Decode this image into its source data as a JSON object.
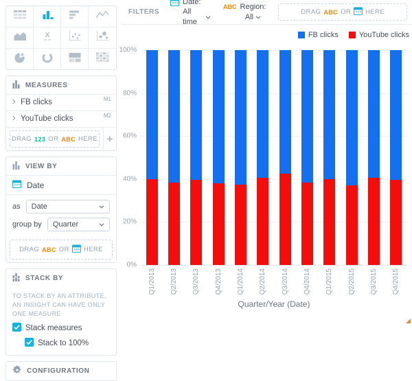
{
  "colors": {
    "accent": "#14b2e2",
    "numeric_token": "#00c18d",
    "attribute_token": "#f18600",
    "icon_gray": "#b3bfca",
    "header_icon": "#8a98a6",
    "fb_blue": "#1570EF",
    "youtube_red": "#F40D0D"
  },
  "sidebar": {
    "viz_types": [
      {
        "name": "table",
        "selected": false
      },
      {
        "name": "column-chart",
        "selected": true
      },
      {
        "name": "bar-chart",
        "selected": false
      },
      {
        "name": "line-chart",
        "selected": false
      },
      {
        "name": "area-chart",
        "selected": false
      },
      {
        "name": "headline",
        "selected": false
      },
      {
        "name": "scatter-plot",
        "selected": false
      },
      {
        "name": "bubble-chart",
        "selected": false
      },
      {
        "name": "pie-chart",
        "selected": false
      },
      {
        "name": "donut-chart",
        "selected": false
      },
      {
        "name": "treemap",
        "selected": false
      },
      {
        "name": "heatmap",
        "selected": false
      }
    ],
    "measures": {
      "title": "MEASURES",
      "items": [
        {
          "label": "FB clicks",
          "badge": "M1"
        },
        {
          "label": "YouTube clicks",
          "badge": "M2"
        }
      ],
      "dropzone": {
        "drag": "DRAG",
        "num_token": "123",
        "or": "OR",
        "attr_token": "ABC",
        "here": "HERE"
      },
      "add_button": "+"
    },
    "view_by": {
      "title": "VIEW BY",
      "attribute": "Date",
      "as_label": "as",
      "as_value": "Date",
      "group_by_label": "group by",
      "group_by_value": "Quarter",
      "dropzone": {
        "drag": "DRAG",
        "attr_token": "ABC",
        "or": "OR",
        "here": "HERE"
      }
    },
    "stack_by": {
      "title": "STACK BY",
      "hint": "TO STACK BY AN ATTRIBUTE, AN INSIGHT CAN HAVE ONLY ONE MEASURE",
      "checkboxes": [
        {
          "label": "Stack measures",
          "checked": true,
          "indent": false
        },
        {
          "label": "Stack to 100%",
          "checked": true,
          "indent": true
        }
      ]
    },
    "configuration": {
      "title": "CONFIGURATION"
    }
  },
  "filters": {
    "label": "FILTERS",
    "date_filter": {
      "name": "Date:",
      "value": "All time"
    },
    "region_filter": {
      "token": "ABC",
      "name": "Region:",
      "value": "All"
    },
    "dropzone": {
      "drag": "DRAG",
      "attr_token": "ABC",
      "or": "OR",
      "here": "HERE"
    }
  },
  "chart_data": {
    "type": "bar",
    "stacked": true,
    "stack_to_100_percent": true,
    "categories": [
      "Q1/2013",
      "Q2/2013",
      "Q3/2013",
      "Q4/2013",
      "Q1/2014",
      "Q2/2014",
      "Q3/2014",
      "Q4/2014",
      "Q1/2015",
      "Q2/2015",
      "Q3/2015",
      "Q4/2015"
    ],
    "series": [
      {
        "name": "FB clicks",
        "color": "#1570EF",
        "values": [
          60,
          61.5,
          60.5,
          62,
          62.5,
          59.5,
          57.5,
          61.5,
          60,
          63,
          59.5,
          60.5
        ]
      },
      {
        "name": "YouTube clicks",
        "color": "#F40D0D",
        "values": [
          40,
          38.5,
          39.5,
          38,
          37.5,
          40.5,
          42.5,
          38.5,
          40,
          37,
          40.5,
          39.5
        ]
      }
    ],
    "value_unit": "percent",
    "xlabel": "Quarter/Year (Date)",
    "ylabel": "",
    "ylim": [
      0,
      100
    ],
    "yticks": [
      0,
      20,
      40,
      60,
      80,
      100
    ],
    "ytick_labels": [
      "0%",
      "20%",
      "40%",
      "60%",
      "80%",
      "100%"
    ],
    "grid": true,
    "legend_position": "top-right"
  }
}
